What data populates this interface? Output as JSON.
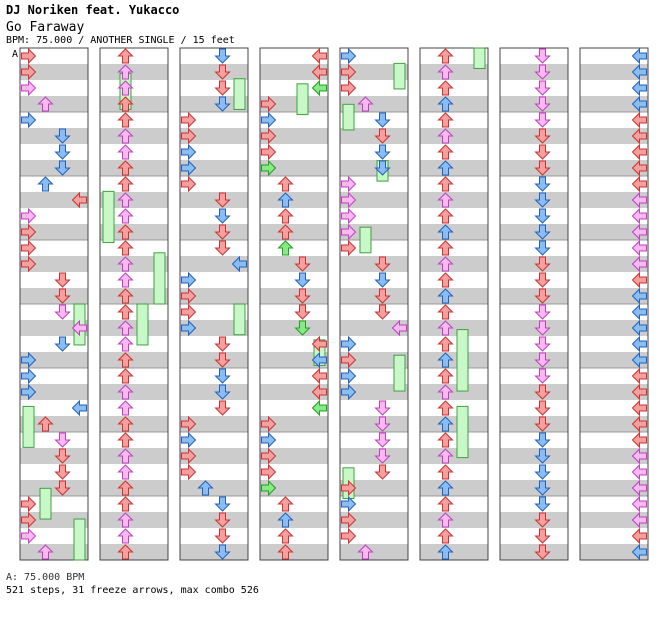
{
  "header": {
    "artist": "DJ Noriken feat. Yukacco",
    "title": "Go Faraway",
    "info": "BPM: 75.000 / ANOTHER SINGLE / 15 feet"
  },
  "bpm_marker": "A",
  "footer": {
    "bpm_legend": "A: 75.000 BPM",
    "stats": "521 steps, 31 freeze arrows, max combo 526"
  },
  "colors": {
    "stripe": "#cccccc",
    "red_note": "#f5a0a0",
    "blue_note": "#8cbcf0",
    "pink_note": "#f8b8f0",
    "green_note": "#88e888",
    "freeze": "#c8f8c8"
  },
  "columns": [
    {
      "lanes": [
        [
          0,
          2,
          "r"
        ],
        [
          1,
          1,
          "b"
        ],
        [
          2,
          3,
          "p"
        ],
        [
          3,
          0,
          "r"
        ],
        [
          0,
          1,
          "b"
        ],
        [
          1,
          3,
          "r"
        ],
        [
          2,
          2,
          "p"
        ],
        [
          3,
          1,
          "b"
        ],
        [
          0,
          0,
          "r"
        ],
        [
          2,
          1,
          "p"
        ],
        [
          1,
          2,
          "b"
        ],
        [
          3,
          3,
          "r"
        ],
        [
          0,
          3,
          "b"
        ],
        [
          2,
          0,
          "r"
        ]
      ],
      "freeze": [
        [
          3,
          0.5,
          0.58
        ],
        [
          0,
          0.7,
          0.78
        ],
        [
          1,
          0.86,
          0.92
        ],
        [
          3,
          0.92,
          1.0
        ]
      ]
    },
    {
      "lanes": [
        [
          0,
          0,
          "b"
        ],
        [
          1,
          2,
          "r"
        ],
        [
          2,
          1,
          "p"
        ],
        [
          3,
          3,
          "b"
        ],
        [
          0,
          3,
          "p"
        ],
        [
          1,
          1,
          "r"
        ],
        [
          2,
          2,
          "b"
        ],
        [
          3,
          0,
          "p"
        ],
        [
          0,
          2,
          "r"
        ],
        [
          1,
          0,
          "b"
        ],
        [
          2,
          3,
          "r"
        ],
        [
          3,
          1,
          "b"
        ]
      ],
      "freeze": [
        [
          1,
          0.05,
          0.12
        ],
        [
          0,
          0.28,
          0.38
        ],
        [
          3,
          0.4,
          0.5
        ],
        [
          2,
          0.5,
          0.58
        ]
      ]
    },
    {
      "lanes": [
        [
          0,
          1,
          "r"
        ],
        [
          1,
          2,
          "r"
        ],
        [
          2,
          0,
          "b"
        ],
        [
          3,
          3,
          "r"
        ],
        [
          0,
          2,
          "b"
        ],
        [
          1,
          1,
          "r"
        ],
        [
          2,
          3,
          "b"
        ],
        [
          3,
          0,
          "r"
        ],
        [
          0,
          0,
          "r"
        ],
        [
          1,
          3,
          "b"
        ],
        [
          2,
          1,
          "r"
        ],
        [
          3,
          2,
          "b"
        ],
        [
          0,
          3,
          "r"
        ],
        [
          2,
          2,
          "b"
        ]
      ],
      "freeze": [
        [
          3,
          0.06,
          0.12
        ],
        [
          3,
          0.5,
          0.56
        ]
      ]
    },
    {
      "lanes": [
        [
          0,
          1,
          "b"
        ],
        [
          1,
          2,
          "r"
        ],
        [
          2,
          0,
          "b"
        ],
        [
          3,
          3,
          "r"
        ],
        [
          0,
          0,
          "r"
        ],
        [
          1,
          3,
          "b"
        ],
        [
          2,
          1,
          "r"
        ],
        [
          3,
          2,
          "b"
        ],
        [
          0,
          2,
          "g"
        ],
        [
          1,
          0,
          "g"
        ],
        [
          2,
          3,
          "g"
        ],
        [
          0,
          3,
          "p"
        ],
        [
          1,
          1,
          "r"
        ],
        [
          2,
          2,
          "p"
        ],
        [
          3,
          0,
          "b"
        ]
      ],
      "freeze": [
        [
          2,
          0.07,
          0.13
        ],
        [
          3,
          0.57,
          0.62
        ]
      ]
    },
    {
      "lanes": [
        [
          0,
          3,
          "p"
        ],
        [
          1,
          2,
          "r"
        ],
        [
          2,
          1,
          "b"
        ],
        [
          3,
          0,
          "p"
        ],
        [
          0,
          0,
          "b"
        ],
        [
          1,
          3,
          "r"
        ],
        [
          2,
          2,
          "p"
        ],
        [
          3,
          1,
          "r"
        ],
        [
          0,
          1,
          "b"
        ],
        [
          1,
          0,
          "p"
        ],
        [
          2,
          3,
          "r"
        ],
        [
          3,
          2,
          "b"
        ],
        [
          0,
          2,
          "r"
        ],
        [
          2,
          0,
          "p"
        ]
      ],
      "freeze": [
        [
          3,
          0.03,
          0.08
        ],
        [
          0,
          0.11,
          0.16
        ],
        [
          2,
          0.22,
          0.26
        ],
        [
          1,
          0.35,
          0.4
        ],
        [
          3,
          0.6,
          0.67
        ],
        [
          0,
          0.82,
          0.88
        ]
      ]
    },
    {
      "lanes": [
        [
          0,
          0,
          "r"
        ],
        [
          1,
          2,
          "r"
        ],
        [
          2,
          1,
          "b"
        ],
        [
          3,
          3,
          "b"
        ],
        [
          0,
          3,
          "p"
        ],
        [
          1,
          1,
          "r"
        ],
        [
          2,
          2,
          "p"
        ],
        [
          3,
          0,
          "b"
        ],
        [
          0,
          1,
          "p"
        ],
        [
          1,
          0,
          "r"
        ],
        [
          2,
          3,
          "b"
        ],
        [
          3,
          2,
          "r"
        ]
      ],
      "freeze": [
        [
          3,
          0.0,
          0.04
        ],
        [
          2,
          0.55,
          0.67
        ],
        [
          2,
          0.7,
          0.8
        ]
      ]
    },
    {
      "lanes": [
        [
          0,
          2,
          "r"
        ],
        [
          1,
          1,
          "b"
        ],
        [
          2,
          3,
          "p"
        ],
        [
          3,
          0,
          "r"
        ],
        [
          0,
          0,
          "b"
        ],
        [
          1,
          3,
          "r"
        ],
        [
          2,
          2,
          "p"
        ],
        [
          3,
          1,
          "b"
        ],
        [
          0,
          1,
          "r"
        ],
        [
          1,
          2,
          "p"
        ],
        [
          2,
          0,
          "b"
        ],
        [
          3,
          3,
          "r"
        ],
        [
          0,
          3,
          "p"
        ],
        [
          1,
          0,
          "r"
        ],
        [
          2,
          1,
          "b"
        ],
        [
          3,
          2,
          "p"
        ]
      ],
      "freeze": []
    },
    {
      "lanes": [
        [
          0,
          1,
          "b"
        ],
        [
          1,
          2,
          "r"
        ],
        [
          2,
          3,
          "p"
        ],
        [
          3,
          0,
          "r"
        ],
        [
          0,
          3,
          "b"
        ],
        [
          1,
          1,
          "p"
        ],
        [
          2,
          2,
          "r"
        ],
        [
          3,
          3,
          "b"
        ],
        [
          0,
          0,
          "p"
        ],
        [
          1,
          0,
          "r"
        ],
        [
          2,
          1,
          "b"
        ],
        [
          3,
          2,
          "p"
        ],
        [
          0,
          2,
          "r"
        ],
        [
          1,
          3,
          "b"
        ],
        [
          2,
          0,
          "p"
        ],
        [
          3,
          1,
          "r"
        ]
      ],
      "freeze": []
    }
  ]
}
